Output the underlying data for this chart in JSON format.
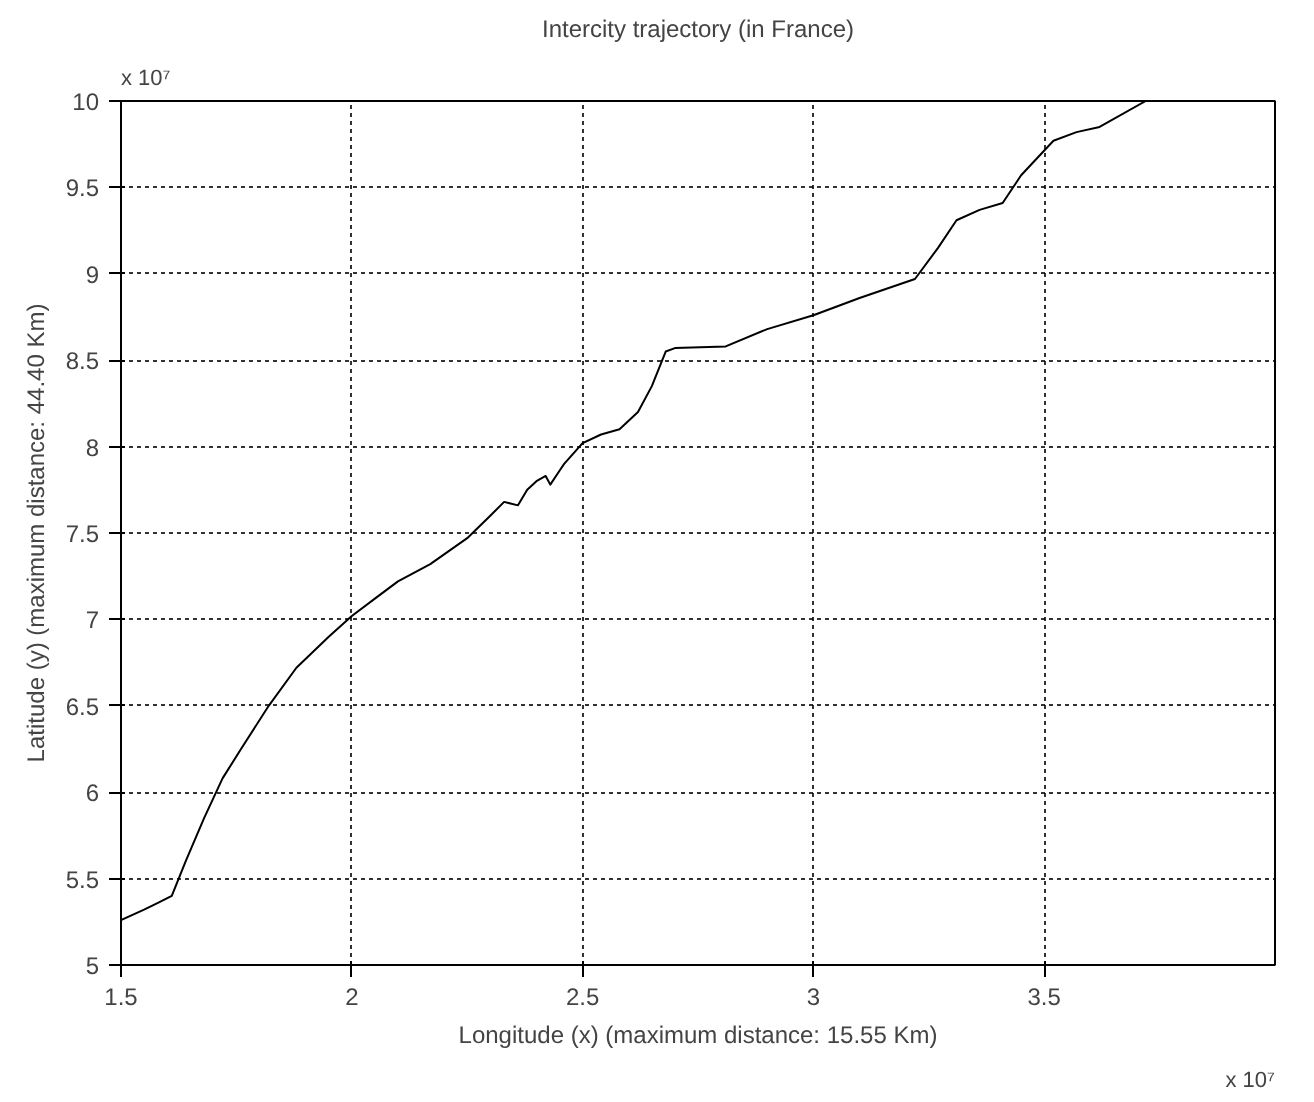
{
  "chart_data": {
    "type": "line",
    "title": "Intercity trajectory (in France)",
    "xlabel": "Longitude (x) (maximum distance: 15.55 Km)",
    "ylabel": "Latitude (y) (maximum distance: 44.40 Km)",
    "annotations": [
      "x 10⁷",
      "x 10⁷"
    ],
    "x": [
      1.5,
      1.55,
      1.58,
      1.61,
      1.64,
      1.68,
      1.72,
      1.76,
      1.82,
      1.88,
      1.95,
      2.0,
      2.05,
      2.1,
      2.17,
      2.25,
      2.3,
      2.33,
      2.36,
      2.38,
      2.4,
      2.42,
      2.43,
      2.45,
      2.46,
      2.5,
      2.54,
      2.58,
      2.62,
      2.65,
      2.68,
      2.7,
      2.81,
      2.9,
      3.0,
      3.1,
      3.22,
      3.27,
      3.31,
      3.36,
      3.41,
      3.45,
      3.52,
      3.57,
      3.62,
      3.72
    ],
    "series": [
      {
        "color": "#000000",
        "values": [
          5.26,
          5.32,
          5.36,
          5.4,
          5.6,
          5.85,
          6.08,
          6.25,
          6.5,
          6.72,
          6.9,
          7.02,
          7.12,
          7.22,
          7.32,
          7.47,
          7.6,
          7.68,
          7.66,
          7.75,
          7.8,
          7.83,
          7.78,
          7.86,
          7.9,
          8.02,
          8.07,
          8.1,
          8.2,
          8.35,
          8.55,
          8.57,
          8.58,
          8.68,
          8.76,
          8.86,
          8.97,
          9.15,
          9.31,
          9.37,
          9.41,
          9.57,
          9.77,
          9.82,
          9.85,
          10.0
        ]
      }
    ],
    "xlim": [
      1.5,
      4
    ],
    "ylim": [
      5,
      10
    ],
    "xticks": [
      1.5,
      2,
      2.5,
      3,
      3.5
    ],
    "yticks": [
      5,
      5.5,
      6,
      6.5,
      7,
      7.5,
      8,
      8.5,
      9,
      9.5,
      10
    ],
    "grid": true,
    "line_style": "solid",
    "marker": "none"
  }
}
